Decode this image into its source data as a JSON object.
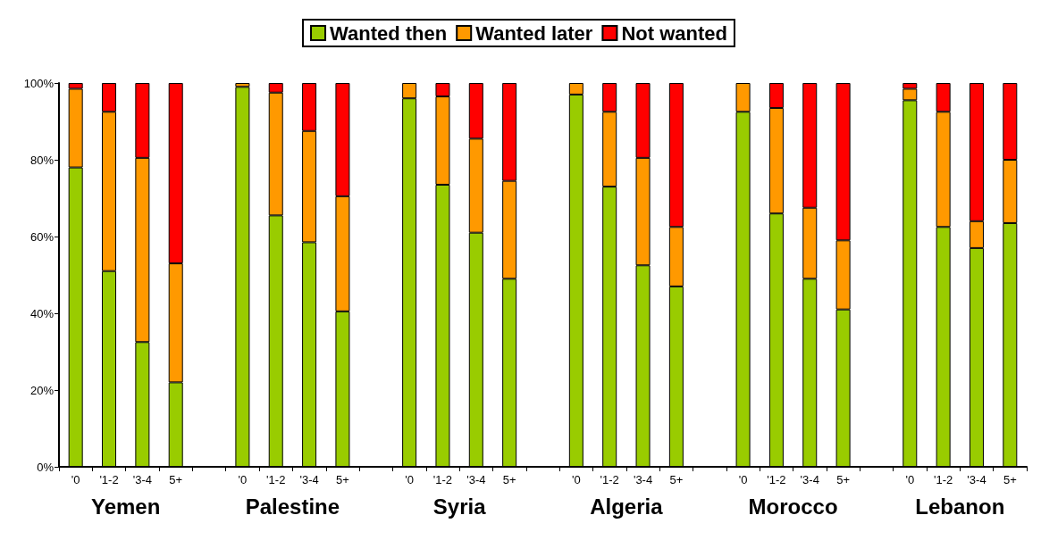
{
  "chart_data": {
    "type": "bar",
    "stacked": true,
    "categories": [
      "'0",
      "'1-2",
      "'3-4",
      "5+",
      null,
      "'0",
      "'1-2",
      "'3-4",
      "5+",
      null,
      "'0",
      "'1-2",
      "'3-4",
      "5+",
      null,
      "'0",
      "'1-2",
      "'3-4",
      "5+",
      null,
      "'0",
      "'1-2",
      "'3-4",
      "5+",
      null,
      "'0",
      "'1-2",
      "'3-4",
      "5+"
    ],
    "series": [
      {
        "name": "Wanted then",
        "color": "#99cc00",
        "values": [
          78,
          51,
          32.5,
          22,
          null,
          99,
          65.5,
          58.5,
          40.5,
          null,
          96,
          73.5,
          61,
          49,
          null,
          97,
          73,
          52.5,
          47,
          null,
          92.5,
          66,
          49,
          41,
          null,
          95.5,
          62.5,
          57,
          63.5
        ]
      },
      {
        "name": "Wanted later",
        "color": "#ff9900",
        "values": [
          20.5,
          41.5,
          48,
          31,
          null,
          1,
          32,
          29,
          30,
          null,
          4,
          23,
          24.5,
          25.5,
          null,
          3,
          19.5,
          28,
          15.5,
          null,
          7.5,
          27.5,
          18.5,
          18,
          null,
          3,
          30,
          7,
          16.5
        ]
      },
      {
        "name": "Not wanted",
        "color": "#ff0000",
        "values": [
          1.5,
          7.5,
          19.5,
          47,
          null,
          0,
          2.5,
          12.5,
          29.5,
          null,
          0,
          3.5,
          14.5,
          25.5,
          null,
          0,
          7.5,
          19.5,
          37.5,
          null,
          0,
          6.5,
          32.5,
          41,
          null,
          1.5,
          7.5,
          36,
          20
        ]
      }
    ],
    "ylim": [
      0,
      100
    ],
    "yticks": [
      {
        "value": 0,
        "label": "0%"
      },
      {
        "value": 20,
        "label": "20%"
      },
      {
        "value": 40,
        "label": "40%"
      },
      {
        "value": 60,
        "label": "60%"
      },
      {
        "value": 80,
        "label": "80%"
      },
      {
        "value": 100,
        "label": "100%"
      }
    ],
    "annotations": [
      "Yemen",
      "Palestine",
      "Syria",
      "Algeria",
      "Morocco",
      "Lebanon"
    ],
    "legend": "top",
    "grid": false
  }
}
